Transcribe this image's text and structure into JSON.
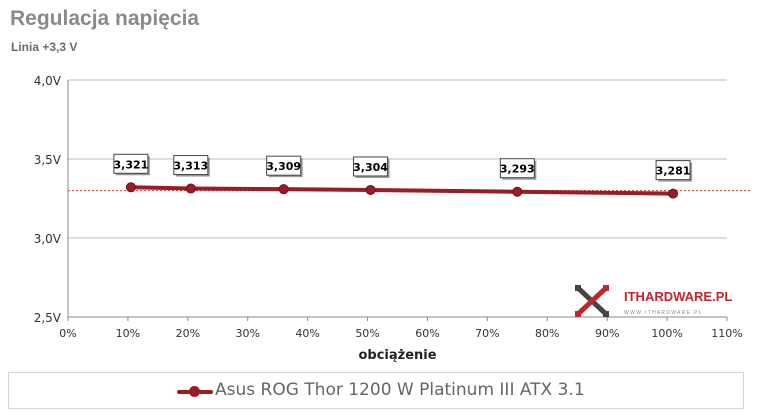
{
  "header": {
    "title": "Regulacja napięcia",
    "subtitle": "Linia +3,3 V"
  },
  "chart_data": {
    "type": "line",
    "title": "Regulacja napięcia",
    "subtitle": "Linia +3,3 V",
    "xlabel": "obciążenie",
    "ylabel": "",
    "xlim": [
      0,
      110
    ],
    "ylim": [
      2.5,
      4.0
    ],
    "x_ticks": [
      "0%",
      "10%",
      "20%",
      "30%",
      "40%",
      "50%",
      "60%",
      "70%",
      "80%",
      "90%",
      "100%",
      "110%"
    ],
    "y_ticks": [
      "2,5V",
      "3,0V",
      "3,5V",
      "4,0V"
    ],
    "reference_line": 3.3,
    "series": [
      {
        "name": "Asus ROG Thor 1200 W Platinum III ATX 3.1",
        "color": "#9a1c26",
        "x": [
          10.5,
          20.5,
          36,
          50.5,
          75,
          101
        ],
        "y": [
          3.321,
          3.313,
          3.309,
          3.304,
          3.293,
          3.281
        ],
        "labels": [
          "3,321",
          "3,313",
          "3,309",
          "3,304",
          "3,293",
          "3,281"
        ]
      }
    ],
    "grid": "horizontal",
    "legend": "bottom"
  },
  "logo": {
    "text": "ITHARDWARE.PL",
    "tagline": "W W W . I T H A R D W A R E . P L"
  },
  "legend": {
    "label": "Asus ROG Thor 1200 W Platinum III ATX 3.1"
  }
}
